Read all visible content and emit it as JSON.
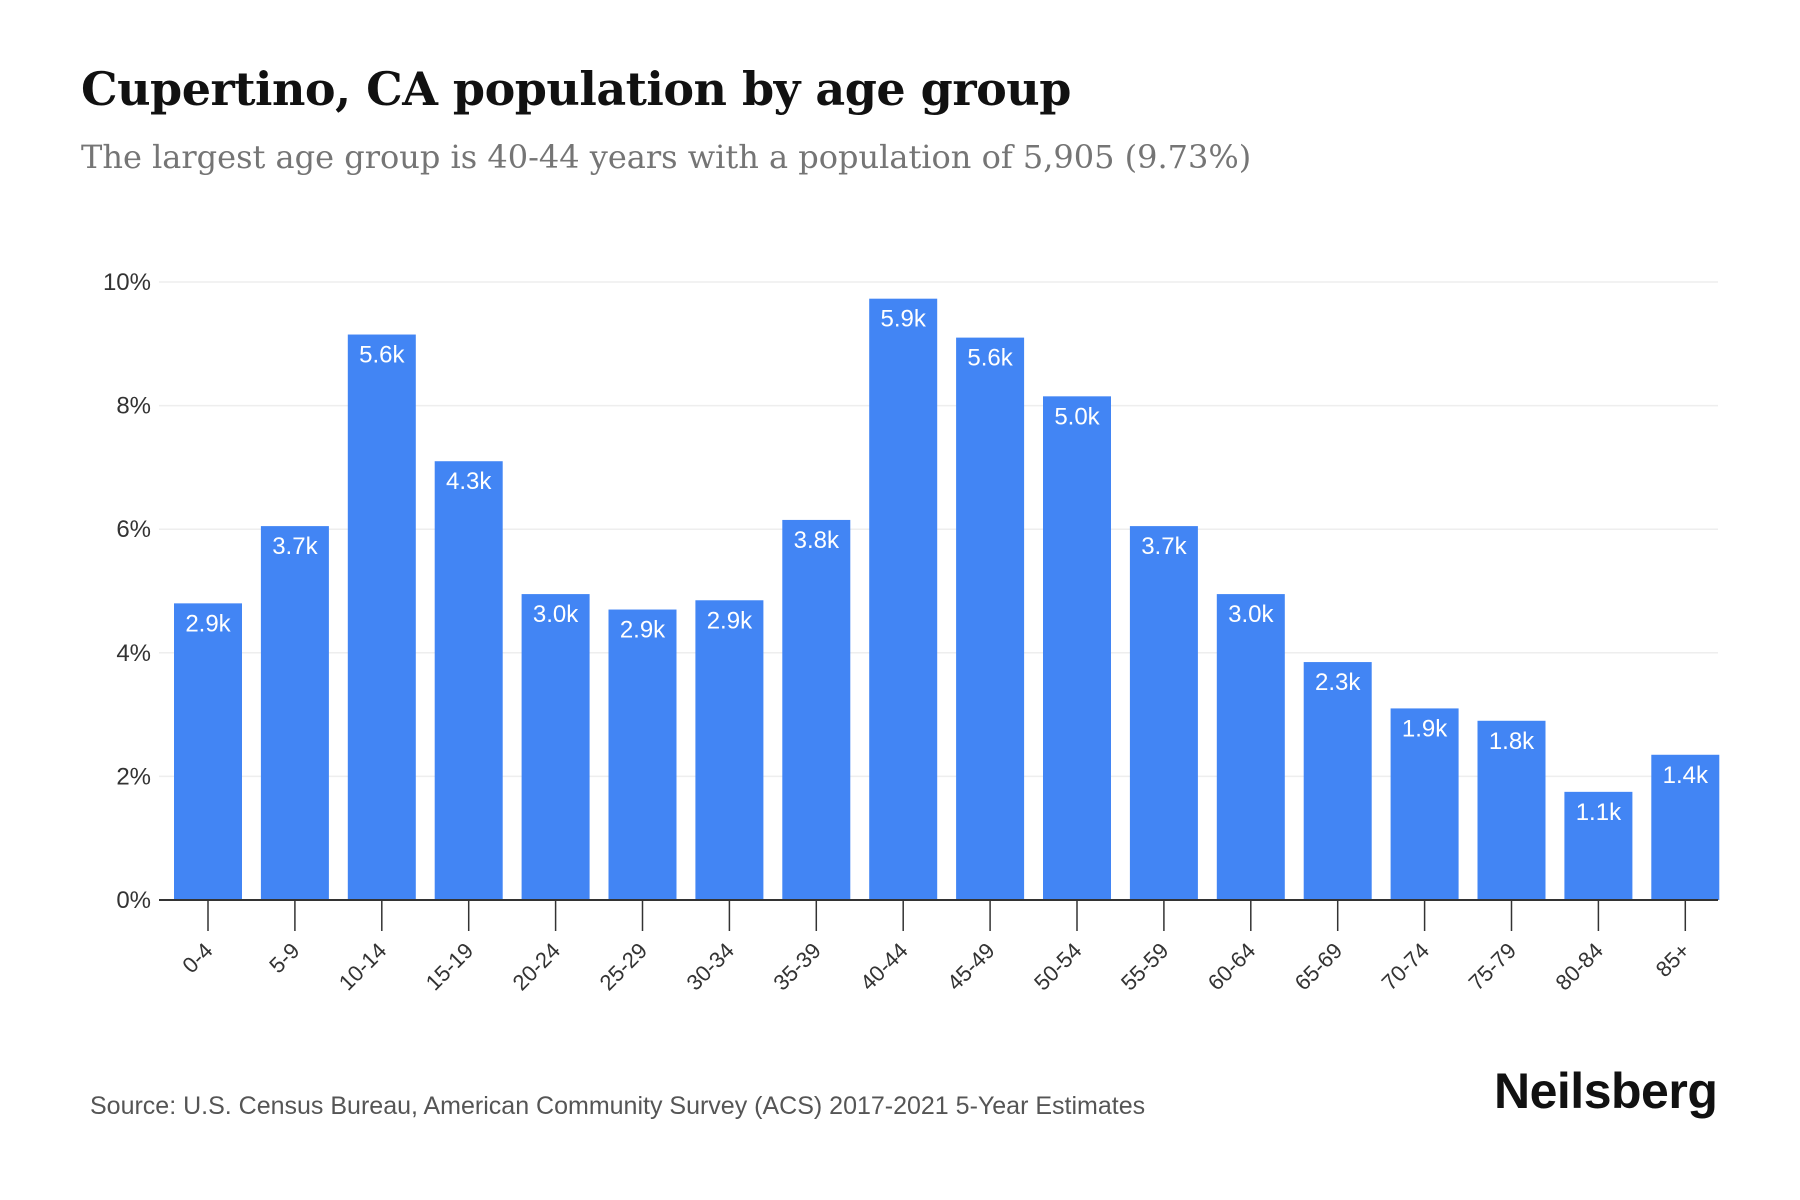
{
  "header": {
    "title": "Cupertino, CA population by age group",
    "subtitle": "The largest age group is 40-44 years with a population of 5,905 (9.73%)"
  },
  "footer": {
    "source": "Source: U.S. Census Bureau, American Community Survey (ACS) 2017-2021 5-Year Estimates",
    "brand": "Neilsberg"
  },
  "colors": {
    "bar": "#4285F4",
    "grid": "#EEEEEE",
    "axis": "#333333"
  },
  "chart_data": {
    "type": "bar",
    "title": "Cupertino, CA population by age group",
    "subtitle": "The largest age group is 40-44 years with a population of 5,905 (9.73%)",
    "xlabel": "",
    "ylabel": "",
    "ylim": [
      0,
      10
    ],
    "yticks": [
      0,
      2,
      4,
      6,
      8,
      10
    ],
    "ytick_labels": [
      "0%",
      "2%",
      "4%",
      "6%",
      "8%",
      "10%"
    ],
    "grid": true,
    "legend": "none",
    "categories": [
      "0-4",
      "5-9",
      "10-14",
      "15-19",
      "20-24",
      "25-29",
      "30-34",
      "35-39",
      "40-44",
      "45-49",
      "50-54",
      "55-59",
      "60-64",
      "65-69",
      "70-74",
      "75-79",
      "80-84",
      "85+"
    ],
    "values": [
      4.8,
      6.05,
      9.15,
      7.1,
      4.95,
      4.7,
      4.85,
      6.15,
      9.73,
      9.1,
      8.15,
      6.05,
      4.95,
      3.85,
      3.1,
      2.9,
      1.75,
      2.35
    ],
    "value_unit": "percent of population",
    "data_labels": [
      "2.9k",
      "3.7k",
      "5.6k",
      "4.3k",
      "3.0k",
      "2.9k",
      "2.9k",
      "3.8k",
      "5.9k",
      "5.6k",
      "5.0k",
      "3.7k",
      "3.0k",
      "2.3k",
      "1.9k",
      "1.8k",
      "1.1k",
      "1.4k"
    ]
  }
}
